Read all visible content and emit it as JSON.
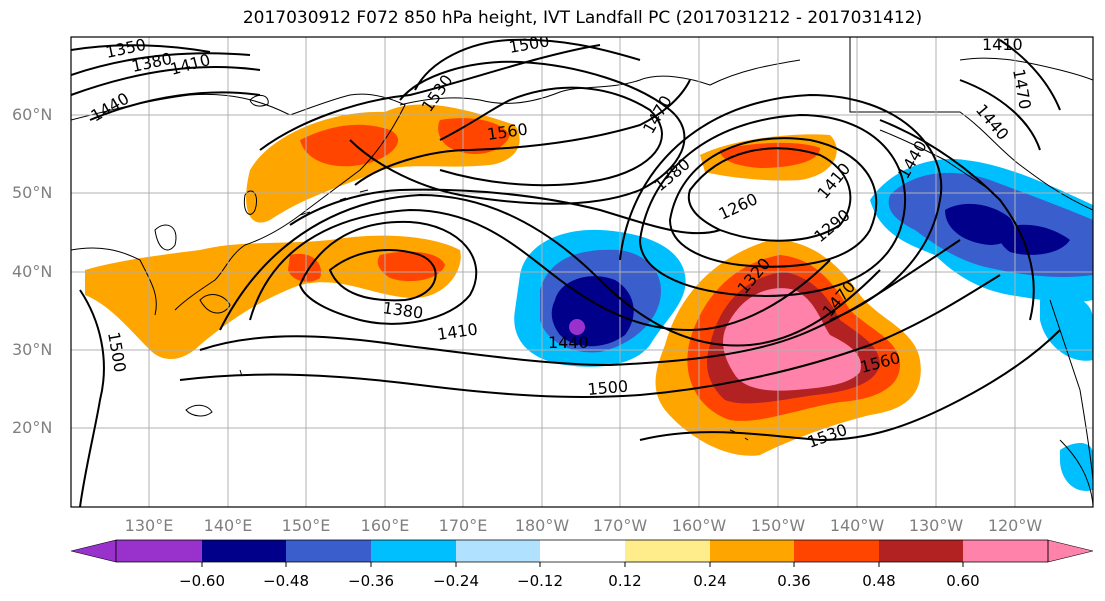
{
  "title": "2017030912 F072 850 hPa height, IVT Landfall PC (2017031212 - 2017031412)",
  "lat_labels": [
    "60°N",
    "50°N",
    "40°N",
    "30°N",
    "20°N"
  ],
  "lon_labels": [
    "130°E",
    "140°E",
    "150°E",
    "160°E",
    "170°E",
    "180°W",
    "170°W",
    "160°W",
    "150°W",
    "140°W",
    "130°W",
    "120°W"
  ],
  "contour_labels": [
    "1350",
    "1380",
    "1410",
    "1440",
    "1500",
    "1530",
    "1560",
    "1470",
    "1380",
    "1260",
    "1290",
    "1320",
    "1410",
    "1440",
    "1470",
    "1380",
    "1410",
    "1440",
    "1500",
    "1560",
    "1530",
    "1500",
    "1410",
    "1470",
    "1440"
  ],
  "colorbar": {
    "ticks": [
      "−0.60",
      "−0.48",
      "−0.36",
      "−0.24",
      "−0.12",
      "0.12",
      "0.24",
      "0.36",
      "0.48",
      "0.60"
    ],
    "colors": [
      "#9932cc",
      "#00008b",
      "#3a5ecb",
      "#00bfff",
      "#b0e2ff",
      "#ffffff",
      "#ffec8b",
      "#ffa500",
      "#ff4500",
      "#b22222",
      "#ff82ab"
    ]
  }
}
